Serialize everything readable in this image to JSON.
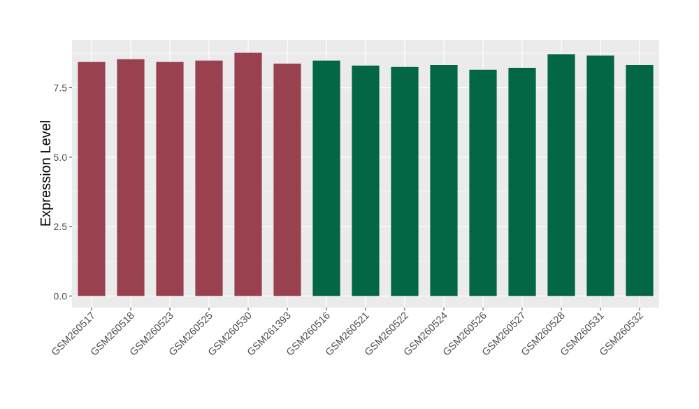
{
  "chart_data": {
    "type": "bar",
    "title": "",
    "xlabel": "",
    "ylabel": "Expression Level",
    "ylim": [
      0,
      9.55
    ],
    "yticks": [
      "0.0",
      "2.5",
      "5.0",
      "7.5"
    ],
    "grid": true,
    "categories": [
      "GSM260517",
      "GSM260518",
      "GSM260523",
      "GSM260525",
      "GSM260530",
      "GSM261393",
      "GSM260516",
      "GSM260521",
      "GSM260522",
      "GSM260524",
      "GSM260526",
      "GSM260527",
      "GSM260528",
      "GSM260531",
      "GSM260532"
    ],
    "values": [
      8.43,
      8.53,
      8.43,
      8.48,
      8.76,
      8.37,
      8.48,
      8.3,
      8.25,
      8.32,
      8.15,
      8.22,
      8.71,
      8.66,
      8.32
    ],
    "groups": [
      0,
      0,
      0,
      0,
      0,
      0,
      1,
      1,
      1,
      1,
      1,
      1,
      1,
      1,
      1
    ],
    "group_colors": [
      "#9A4150",
      "#036644"
    ],
    "panel_background": "#EBEBEB",
    "grid_color": "#FFFFFF"
  }
}
